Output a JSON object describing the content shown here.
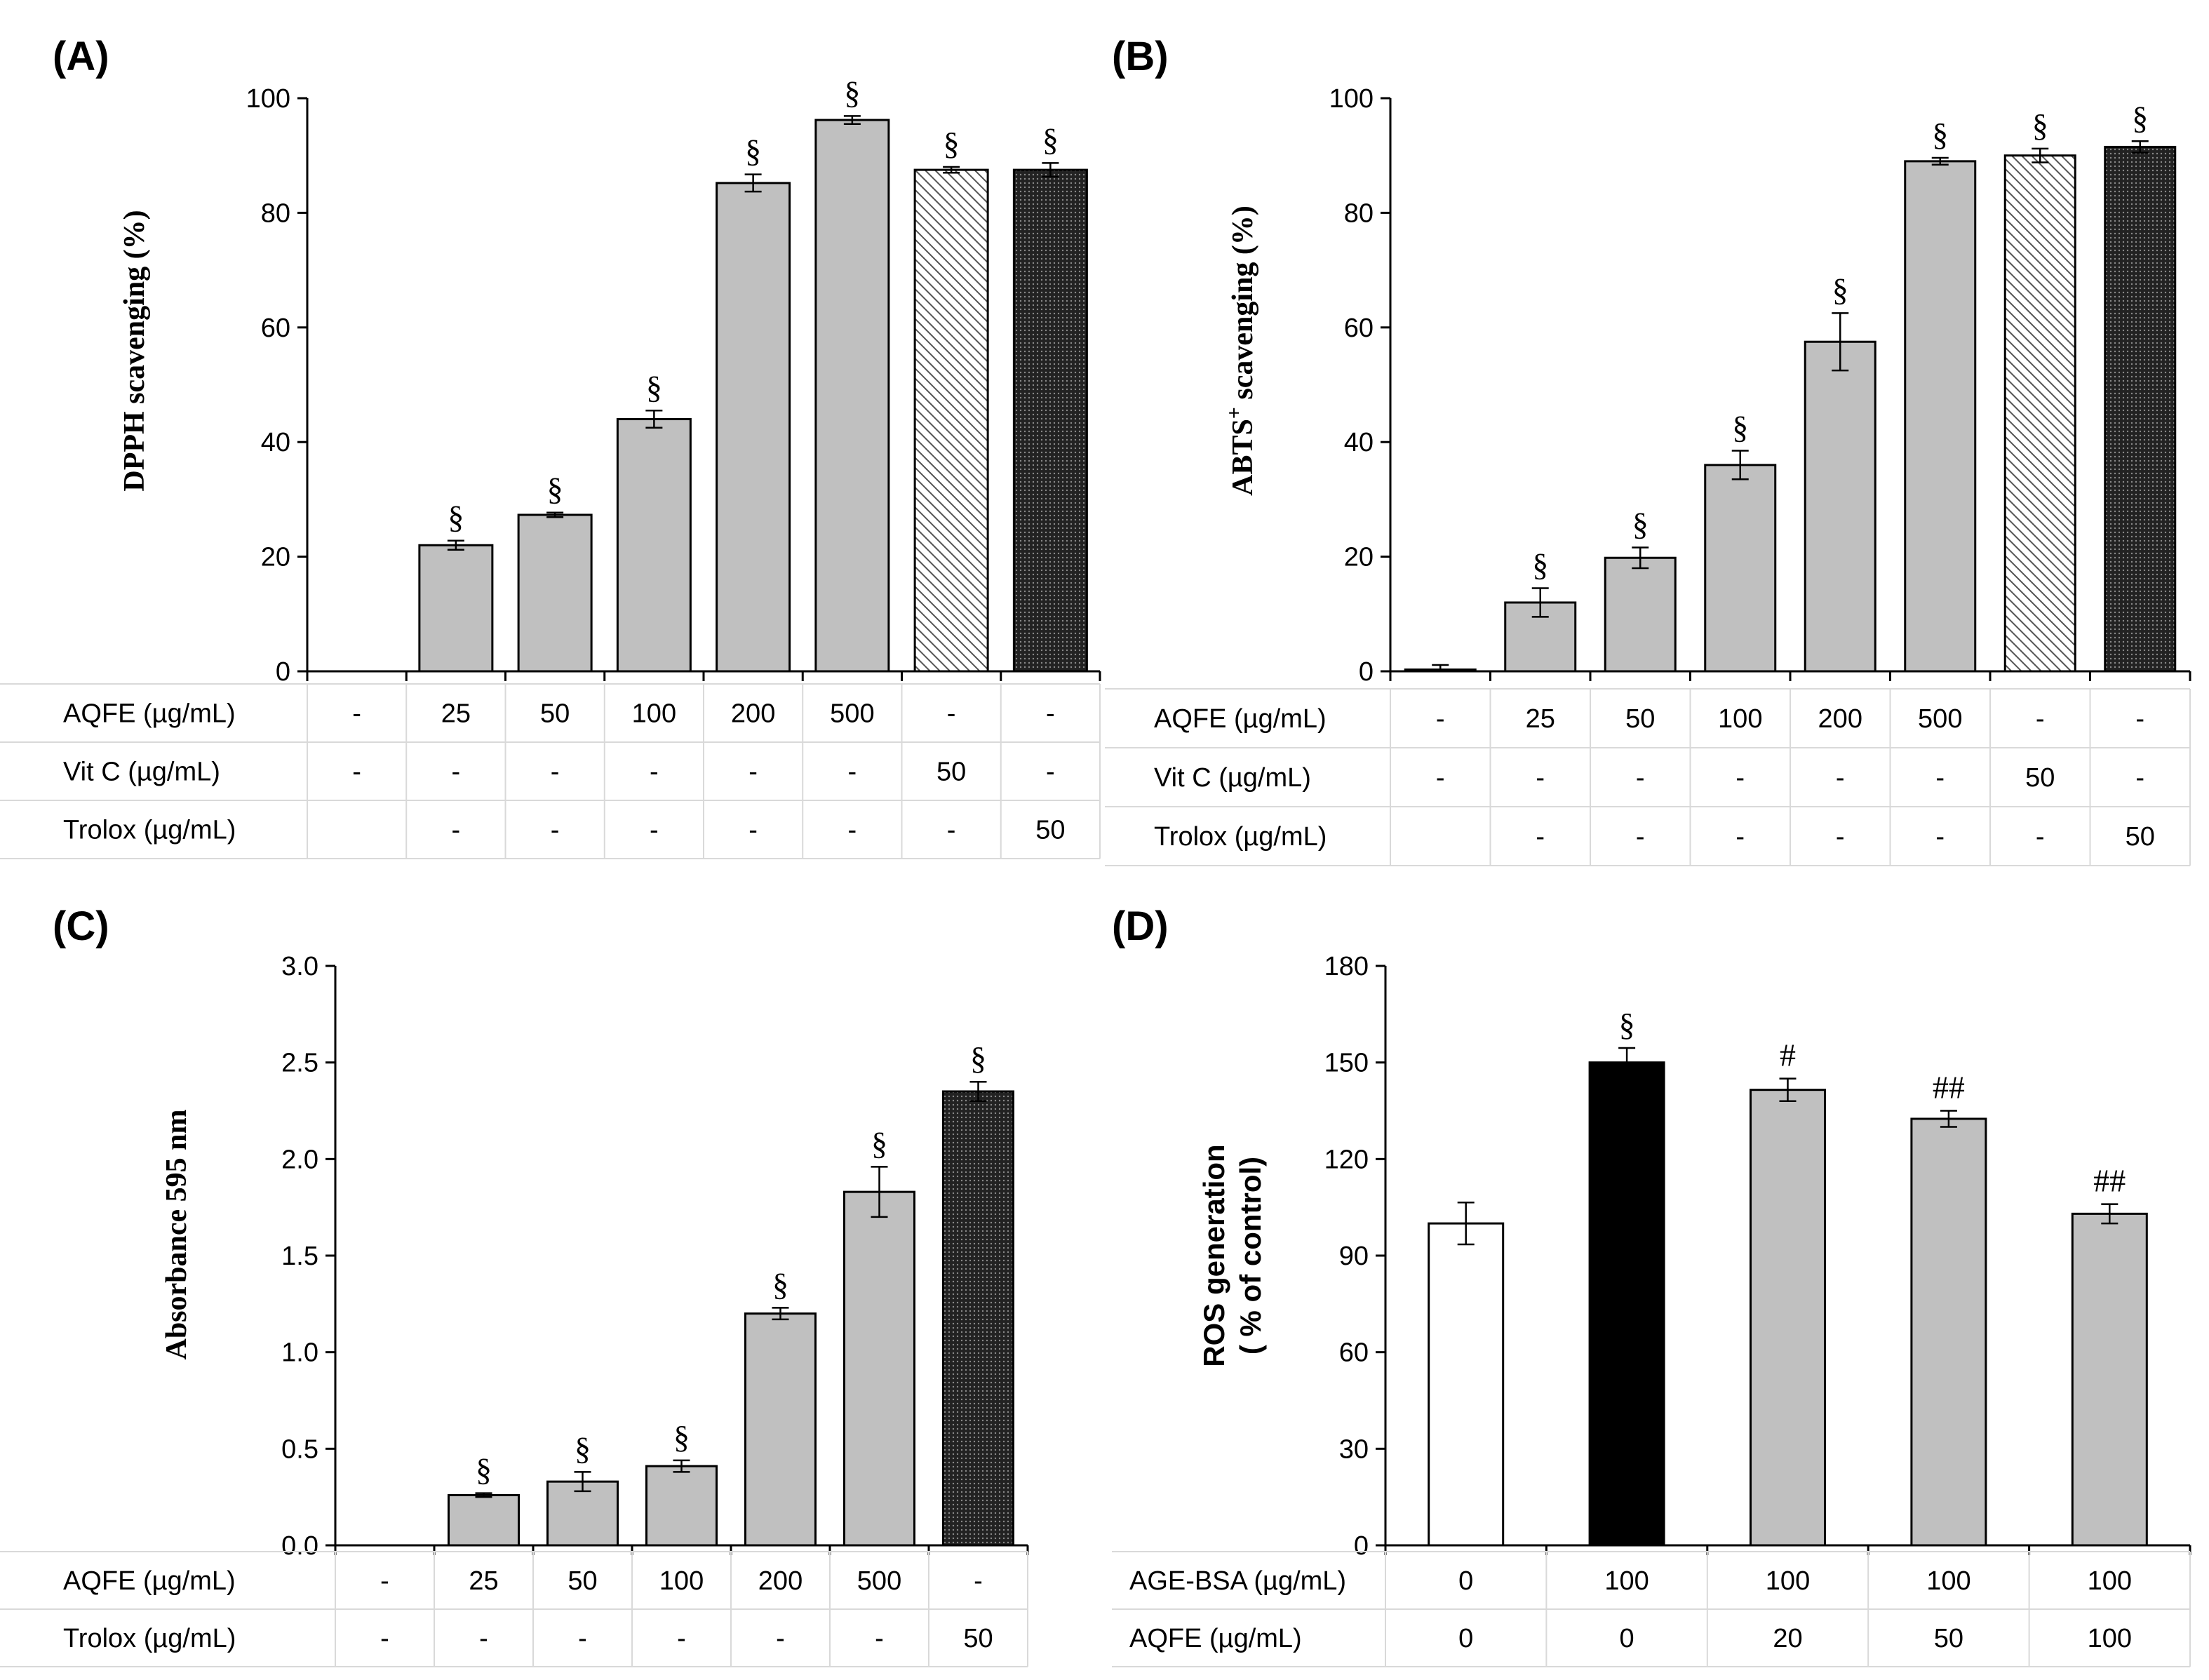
{
  "chart_data": [
    {
      "id": "A",
      "type": "bar",
      "panel_label": "(A)",
      "ylabel": "DPPH scavenging (%)",
      "ylim": [
        0,
        100
      ],
      "yticks": [
        "0",
        "20",
        "40",
        "60",
        "80",
        "100"
      ],
      "values": [
        0,
        22,
        27.3,
        44,
        85.2,
        96.2,
        87.5,
        87.5
      ],
      "errors": [
        0,
        0.8,
        0.4,
        1.5,
        1.5,
        0.7,
        0.5,
        1.2
      ],
      "fills": [
        "none",
        "gray",
        "gray",
        "gray",
        "gray",
        "gray",
        "hatch",
        "dots"
      ],
      "significance": [
        "",
        "§",
        "§",
        "§",
        "§",
        "§",
        "§",
        "§"
      ],
      "table": [
        {
          "label": "AQFE (µg/mL)",
          "cells": [
            "-",
            "25",
            "50",
            "100",
            "200",
            "500",
            "-",
            "-"
          ]
        },
        {
          "label": "Vit C (µg/mL)",
          "cells": [
            "-",
            "-",
            "-",
            "-",
            "-",
            "-",
            "50",
            "-"
          ]
        },
        {
          "label": "Trolox (µg/mL)",
          "cells": [
            "",
            "-",
            "-",
            "-",
            "-",
            "-",
            "-",
            "50"
          ]
        }
      ]
    },
    {
      "id": "B",
      "type": "bar",
      "panel_label": "(B)",
      "ylabel": "ABTS",
      "ylabel_sup": "+",
      "ylabel_rest": " scavenging (%)",
      "ylim": [
        0,
        100
      ],
      "yticks": [
        "0",
        "20",
        "40",
        "60",
        "80",
        "100"
      ],
      "values": [
        0.3,
        12,
        19.8,
        36,
        57.5,
        89,
        90,
        91.5
      ],
      "errors": [
        0.8,
        2.5,
        1.8,
        2.5,
        5,
        0.6,
        1.2,
        1
      ],
      "fills": [
        "gray",
        "gray",
        "gray",
        "gray",
        "gray",
        "gray",
        "hatch",
        "dots"
      ],
      "significance": [
        "",
        "§",
        "§",
        "§",
        "§",
        "§",
        "§",
        "§"
      ],
      "table": [
        {
          "label": "AQFE (µg/mL)",
          "cells": [
            "-",
            "25",
            "50",
            "100",
            "200",
            "500",
            "-",
            "-"
          ]
        },
        {
          "label": "Vit C (µg/mL)",
          "cells": [
            "-",
            "-",
            "-",
            "-",
            "-",
            "-",
            "50",
            "-"
          ]
        },
        {
          "label": "Trolox (µg/mL)",
          "cells": [
            "",
            "-",
            "-",
            "-",
            "-",
            "-",
            "-",
            "50"
          ]
        }
      ]
    },
    {
      "id": "C",
      "type": "bar",
      "panel_label": "(C)",
      "ylabel": "Absorbance 595 nm",
      "ylim": [
        0,
        3
      ],
      "yticks": [
        "0.0",
        "0.5",
        "1.0",
        "1.5",
        "2.0",
        "2.5",
        "3.0"
      ],
      "values": [
        0,
        0.26,
        0.33,
        0.41,
        1.2,
        1.83,
        2.35
      ],
      "errors": [
        0,
        0.01,
        0.05,
        0.03,
        0.03,
        0.13,
        0.05
      ],
      "fills": [
        "none",
        "gray",
        "gray",
        "gray",
        "gray",
        "gray",
        "dots"
      ],
      "significance": [
        "",
        "§",
        "§",
        "§",
        "§",
        "§",
        "§"
      ],
      "table": [
        {
          "label": "AQFE (µg/mL)",
          "cells": [
            "-",
            "25",
            "50",
            "100",
            "200",
            "500",
            "-"
          ]
        },
        {
          "label": "Trolox (µg/mL)",
          "cells": [
            "-",
            "-",
            "-",
            "-",
            "-",
            "-",
            "50"
          ]
        }
      ]
    },
    {
      "id": "D",
      "type": "bar",
      "panel_label": "(D)",
      "ylabel": "ROS generation",
      "ylabel2": "( % of control)",
      "ylim": [
        0,
        180
      ],
      "yticks": [
        "0",
        "30",
        "60",
        "90",
        "120",
        "150",
        "180"
      ],
      "values": [
        100,
        150,
        141.5,
        132.5,
        103
      ],
      "errors": [
        6.5,
        4.5,
        3.5,
        2.5,
        3
      ],
      "fills": [
        "white",
        "black",
        "gray",
        "gray",
        "gray"
      ],
      "significance": [
        "",
        "§",
        "#",
        "##",
        "##"
      ],
      "table": [
        {
          "label": "AGE-BSA (µg/mL)",
          "cells": [
            "0",
            "100",
            "100",
            "100",
            "100"
          ]
        },
        {
          "label": "AQFE (µg/mL)",
          "cells": [
            "0",
            "0",
            "20",
            "50",
            "100"
          ]
        }
      ]
    }
  ]
}
